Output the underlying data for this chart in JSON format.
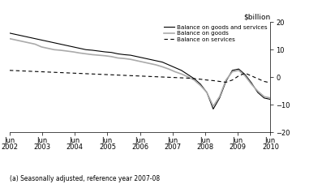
{
  "ylabel": "$billion",
  "footnote": "(a) Seasonally adjusted, reference year 2007-08",
  "ylim": [
    -20,
    20
  ],
  "yticks": [
    -20,
    -10,
    0,
    10,
    20
  ],
  "background_color": "#ffffff",
  "legend_entries": [
    {
      "label": "Balance on goods and services",
      "color": "#000000",
      "linestyle": "solid",
      "linewidth": 0.8
    },
    {
      "label": "Balance on goods",
      "color": "#aaaaaa",
      "linestyle": "solid",
      "linewidth": 1.2
    },
    {
      "label": "Balance on services",
      "color": "#000000",
      "linestyle": "dashed",
      "linewidth": 0.8
    }
  ],
  "x_labels": [
    "Jun\n2002",
    "Jun\n2003",
    "Jun\n2004",
    "Jun\n2005",
    "Jun\n2006",
    "Jun\n2007",
    "Jun\n2008",
    "Jun\n2009",
    "Jun\n2010"
  ],
  "x_positions": [
    0,
    4,
    8,
    12,
    16,
    20,
    24,
    28,
    32
  ],
  "balance_goods_services": [
    16.0,
    15.5,
    15.0,
    14.5,
    14.0,
    13.5,
    13.0,
    12.5,
    12.0,
    11.5,
    11.0,
    10.5,
    10.0,
    9.8,
    9.5,
    9.2,
    9.0,
    8.5,
    8.2,
    8.0,
    7.5,
    7.0,
    6.5,
    6.0,
    5.5,
    4.5,
    3.5,
    2.5,
    1.0,
    -0.5,
    -2.5,
    -5.5,
    -11.5,
    -7.5,
    -1.5,
    2.5,
    3.0,
    1.0,
    -2.0,
    -5.5,
    -7.5,
    -8.0
  ],
  "balance_goods": [
    14.0,
    13.5,
    13.0,
    12.5,
    12.0,
    11.0,
    10.5,
    10.0,
    9.8,
    9.5,
    9.2,
    8.8,
    8.5,
    8.2,
    8.0,
    7.8,
    7.5,
    7.0,
    6.8,
    6.5,
    6.0,
    5.5,
    5.0,
    4.5,
    3.8,
    3.0,
    2.0,
    1.2,
    0.2,
    -1.0,
    -3.0,
    -5.5,
    -10.5,
    -7.0,
    -1.0,
    2.0,
    2.5,
    0.5,
    -2.5,
    -5.0,
    -7.0,
    -7.5
  ],
  "balance_services": [
    2.5,
    2.4,
    2.3,
    2.2,
    2.1,
    2.0,
    1.9,
    1.8,
    1.7,
    1.6,
    1.5,
    1.4,
    1.3,
    1.2,
    1.1,
    1.0,
    0.9,
    0.8,
    0.7,
    0.6,
    0.5,
    0.4,
    0.3,
    0.2,
    0.1,
    0.0,
    -0.1,
    -0.2,
    -0.3,
    -0.5,
    -0.7,
    -1.0,
    -1.2,
    -1.5,
    -1.8,
    -1.0,
    0.5,
    1.5,
    0.5,
    -0.5,
    -1.5,
    -2.0
  ]
}
